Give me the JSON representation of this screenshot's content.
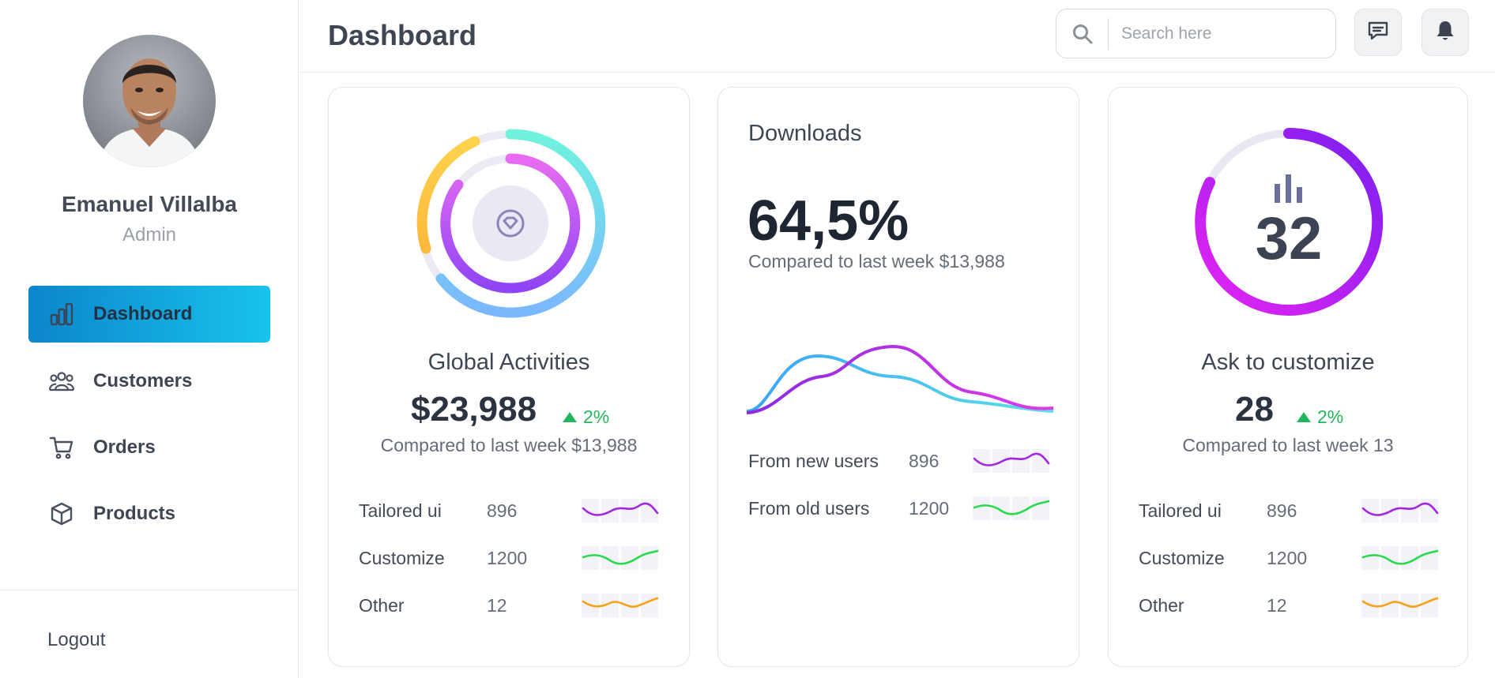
{
  "user": {
    "name": "Emanuel Villalba",
    "role": "Admin"
  },
  "sidebar": {
    "items": [
      {
        "label": "Dashboard",
        "icon": "bar-chart-icon",
        "active": true
      },
      {
        "label": "Customers",
        "icon": "users-icon",
        "active": false
      },
      {
        "label": "Orders",
        "icon": "cart-icon",
        "active": false
      },
      {
        "label": "Products",
        "icon": "box-icon",
        "active": false
      }
    ],
    "logout_label": "Logout"
  },
  "header": {
    "title": "Dashboard",
    "search_placeholder": "Search here",
    "icons": [
      "search-icon",
      "message-icon",
      "bell-icon"
    ]
  },
  "cards": {
    "global": {
      "title": "Global Activities",
      "value": "$23,988",
      "change": "2%",
      "compare": "Compared to last week $13,988",
      "center_icon": "diamond-icon",
      "rows": [
        {
          "label": "Tailored ui",
          "value": "896",
          "color": "#a326e0"
        },
        {
          "label": "Customize",
          "value": "1200",
          "color": "#2bd94c"
        },
        {
          "label": "Other",
          "value": "12",
          "color": "#f5a316"
        }
      ]
    },
    "downloads": {
      "title": "Downloads",
      "value": "64,5%",
      "compare": "Compared to last week $13,988",
      "rows": [
        {
          "label": "From new users",
          "value": "896",
          "color": "#a326e0"
        },
        {
          "label": "From old users",
          "value": "1200",
          "color": "#2bd94c"
        }
      ]
    },
    "customize": {
      "title": "Ask to customize",
      "ring_value": "32",
      "value": "28",
      "change": "2%",
      "compare": "Compared to last week 13",
      "rows": [
        {
          "label": "Tailored ui",
          "value": "896",
          "color": "#a326e0"
        },
        {
          "label": "Customize",
          "value": "1200",
          "color": "#2bd94c"
        },
        {
          "label": "Other",
          "value": "12",
          "color": "#f5a316"
        }
      ]
    }
  },
  "colors": {
    "accent_start": "#0c85cc",
    "accent_end": "#18c3ea",
    "positive": "#21b65b"
  }
}
